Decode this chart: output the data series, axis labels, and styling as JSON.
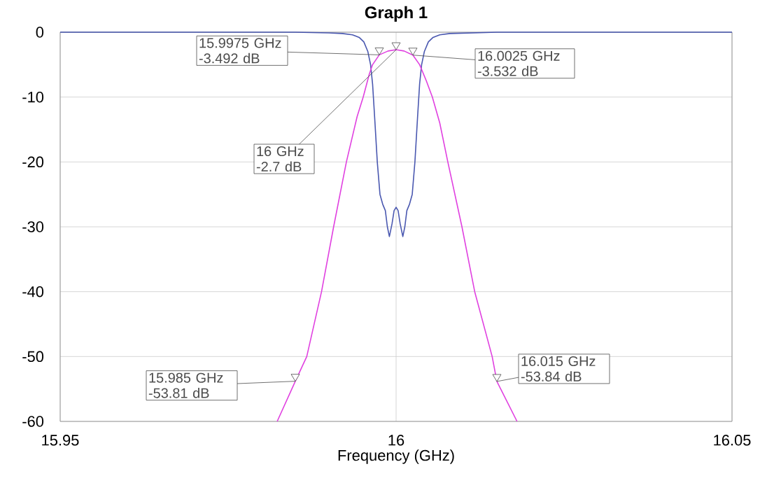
{
  "chart_data": {
    "type": "line",
    "title": "Graph 1",
    "xlabel": "Frequency (GHz)",
    "xlim": [
      15.95,
      16.05
    ],
    "xticks": [
      15.95,
      16,
      16.05
    ],
    "ylim": [
      -60,
      0
    ],
    "yticks": [
      -60,
      -50,
      -40,
      -30,
      -20,
      -10,
      0
    ],
    "grid": true,
    "marker": "none",
    "line_style": "solid",
    "series": [
      {
        "color": "#4a58b0",
        "x": [
          15.95,
          15.96,
          15.97,
          15.98,
          15.985,
          15.99,
          15.992,
          15.9935,
          15.9945,
          15.9952,
          15.9958,
          15.9962,
          15.9965,
          15.9968,
          15.9972,
          15.9976,
          15.998,
          15.9984,
          15.9987,
          15.999,
          15.9994,
          15.9997,
          16.0,
          16.0003,
          16.0006,
          16.001,
          16.0013,
          16.0016,
          16.002,
          16.0024,
          16.0028,
          16.0032,
          16.0035,
          16.0038,
          16.0042,
          16.0048,
          16.0055,
          16.0065,
          16.008,
          16.015,
          16.02,
          16.03,
          16.04,
          16.05
        ],
        "values": [
          0,
          0,
          0,
          0,
          0,
          -0.1,
          -0.2,
          -0.4,
          -0.8,
          -1.5,
          -3,
          -5,
          -8,
          -13,
          -20,
          -25,
          -26.5,
          -27.5,
          -30,
          -31.5,
          -29.5,
          -27.5,
          -27,
          -27.5,
          -29.5,
          -31.5,
          -30,
          -27.5,
          -26.5,
          -25,
          -20,
          -13,
          -8,
          -5,
          -3,
          -1.5,
          -0.8,
          -0.4,
          -0.2,
          0,
          0,
          0,
          0,
          0
        ]
      },
      {
        "color": "#e040e0",
        "x": [
          15.9823,
          15.985,
          15.9867,
          15.9889,
          15.9907,
          15.9926,
          15.9942,
          15.9951,
          15.996,
          15.9965,
          15.9975,
          15.9988,
          16.0,
          16.0012,
          16.0025,
          16.0035,
          16.0045,
          16.0054,
          16.0065,
          16.0077,
          16.0098,
          16.0117,
          16.0143,
          16.015,
          16.018
        ],
        "values": [
          -60,
          -53.81,
          -50,
          -40,
          -30,
          -20,
          -13,
          -10,
          -6.5,
          -5,
          -3.492,
          -2.9,
          -2.7,
          -2.9,
          -3.532,
          -5,
          -7.5,
          -10,
          -14,
          -20,
          -30,
          -40,
          -50,
          -53.84,
          -60
        ]
      }
    ],
    "annotations": [
      {
        "text": "15.9975 GHz -3.492 dB",
        "x": 15.9975,
        "y": -3.492
      },
      {
        "text": "16.0025 GHz -3.532 dB",
        "x": 16.0025,
        "y": -3.532
      },
      {
        "text": "16 GHz -2.7 dB",
        "x": 16,
        "y": -2.7
      },
      {
        "text": "15.985 GHz -53.81 dB",
        "x": 15.985,
        "y": -53.81
      },
      {
        "text": "16.015 GHz -53.84 dB",
        "x": 16.015,
        "y": -53.84
      }
    ]
  }
}
